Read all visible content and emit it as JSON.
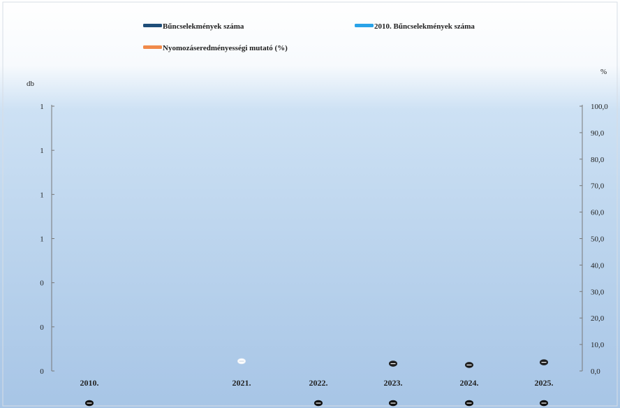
{
  "chart_data": {
    "type": "bar",
    "categories": [
      "2010.",
      "2021.",
      "2022.",
      "2023.",
      "2024.",
      "2025."
    ],
    "series": [
      {
        "name": "Bűncselekmények száma",
        "color": "#1f4e79",
        "values": [
          0,
          null,
          0,
          0,
          0,
          0
        ]
      },
      {
        "name": "2010. Bűncselekmények száma",
        "color": "#29a3e8",
        "values": [
          null,
          0,
          null,
          null,
          null,
          null
        ]
      },
      {
        "name": "Nyomozáseredményességi mutató (%)",
        "color": "#f08a4b",
        "values": [
          null,
          null,
          null,
          2.5,
          2.0,
          3.0
        ]
      }
    ],
    "left_axis": {
      "title": "db",
      "tick_labels": [
        "1",
        "1",
        "1",
        "1",
        "0",
        "0",
        "0"
      ]
    },
    "right_axis": {
      "title": "%",
      "range": [
        0,
        100
      ],
      "tick_labels": [
        "100,0",
        "90,0",
        "80,0",
        "70,0",
        "60,0",
        "50,0",
        "40,0",
        "30,0",
        "20,0",
        "10,0",
        "0,0"
      ]
    },
    "value_labels": [
      {
        "category": "2010.",
        "text": "0"
      },
      {
        "category": "2021.",
        "text": "0"
      },
      {
        "category": "2022.",
        "text": "0"
      },
      {
        "category": "2023.",
        "text": "0"
      },
      {
        "category": "2024.",
        "text": "0"
      },
      {
        "category": "2025.",
        "text": "0"
      }
    ],
    "legend_position": "top",
    "grid": false
  }
}
